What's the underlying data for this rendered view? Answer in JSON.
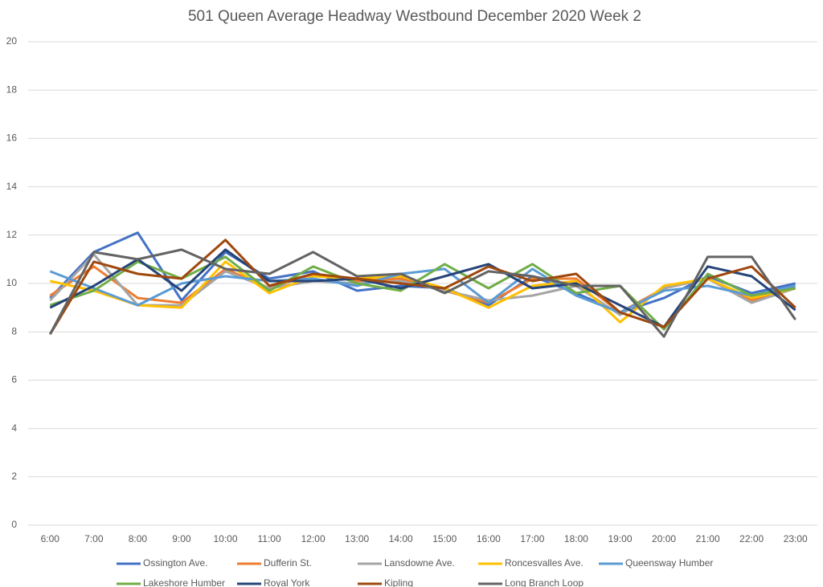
{
  "chart_data": {
    "type": "line",
    "title": "501 Queen  Average Headway Westbound December 2020 Week 2",
    "categories": [
      "6:00",
      "7:00",
      "8:00",
      "9:00",
      "10:00",
      "11:00",
      "12:00",
      "13:00",
      "14:00",
      "15:00",
      "16:00",
      "17:00",
      "18:00",
      "19:00",
      "20:00",
      "21:00",
      "22:00",
      "23:00"
    ],
    "series": [
      {
        "name": "Ossington Ave.",
        "color": "#4472c4",
        "values": [
          9.4,
          11.3,
          12.1,
          9.3,
          11.3,
          10.2,
          10.5,
          9.7,
          9.9,
          9.8,
          9.1,
          10.3,
          9.6,
          8.8,
          9.4,
          10.3,
          9.6,
          10.0
        ]
      },
      {
        "name": "Dufferin St.",
        "color": "#ed7d31",
        "values": [
          9.5,
          10.7,
          9.4,
          9.2,
          10.6,
          9.8,
          10.4,
          10.1,
          10.2,
          9.7,
          9.2,
          10.2,
          10.2,
          8.8,
          9.8,
          10.2,
          9.3,
          9.8
        ]
      },
      {
        "name": "Lansdowne Ave.",
        "color": "#a5a5a5",
        "values": [
          9.3,
          11.2,
          9.1,
          9.1,
          10.5,
          9.8,
          10.1,
          10.0,
          10.1,
          9.7,
          9.3,
          9.5,
          9.9,
          8.7,
          9.8,
          10.2,
          9.2,
          9.8
        ]
      },
      {
        "name": "Roncesvalles Ave.",
        "color": "#ffc000",
        "values": [
          10.1,
          9.7,
          9.1,
          9.0,
          10.9,
          9.6,
          10.3,
          10.2,
          10.3,
          9.8,
          9.0,
          9.9,
          10.1,
          8.4,
          9.9,
          10.2,
          9.4,
          9.8
        ]
      },
      {
        "name": "Queensway Humber",
        "color": "#5b9bd5",
        "values": [
          10.5,
          9.8,
          9.1,
          10.0,
          10.3,
          10.1,
          10.2,
          9.9,
          10.4,
          10.6,
          9.2,
          10.6,
          9.5,
          8.8,
          9.7,
          9.9,
          9.5,
          9.9
        ]
      },
      {
        "name": "Lakeshore Humber",
        "color": "#70ad47",
        "values": [
          9.1,
          9.7,
          10.9,
          10.2,
          11.1,
          9.7,
          10.7,
          10.0,
          9.7,
          10.8,
          9.8,
          10.8,
          9.6,
          9.9,
          8.1,
          10.4,
          9.5,
          9.8
        ]
      },
      {
        "name": "Royal York",
        "color": "#264478",
        "values": [
          9.0,
          9.9,
          11.0,
          9.7,
          11.4,
          10.1,
          10.1,
          10.2,
          9.8,
          10.3,
          10.8,
          9.8,
          10.0,
          9.1,
          8.2,
          10.7,
          10.3,
          8.9
        ]
      },
      {
        "name": "Kipling",
        "color": "#9e480e",
        "values": [
          7.9,
          10.9,
          10.4,
          10.2,
          11.8,
          9.9,
          10.4,
          10.2,
          10.0,
          9.8,
          10.7,
          10.1,
          10.4,
          8.8,
          8.2,
          10.2,
          10.7,
          9.0
        ]
      },
      {
        "name": "Long Branch Loop",
        "color": "#636363",
        "values": [
          7.9,
          11.3,
          11.0,
          11.4,
          10.6,
          10.4,
          11.3,
          10.3,
          10.4,
          9.6,
          10.5,
          10.3,
          9.9,
          9.9,
          7.8,
          11.1,
          11.1,
          8.5
        ]
      }
    ],
    "ylim": [
      0,
      20
    ],
    "yticks": [
      0,
      2,
      4,
      6,
      8,
      10,
      12,
      14,
      16,
      18,
      20
    ],
    "grid": true
  }
}
